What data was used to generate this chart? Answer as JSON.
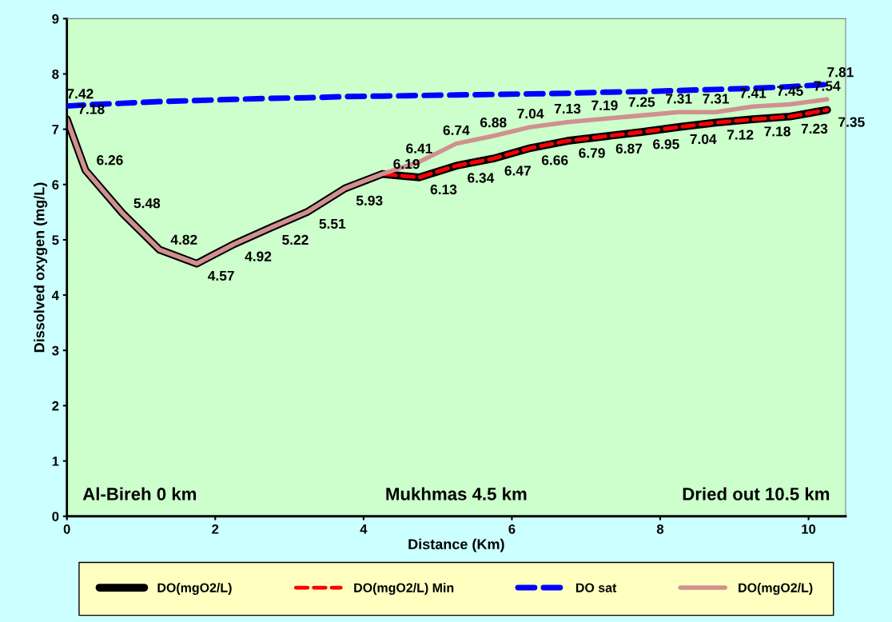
{
  "chart_data": {
    "type": "line",
    "xlabel": "Distance (Km)",
    "ylabel": "Dissolved oxygen (mg/L)",
    "x": [
      0,
      0.25,
      0.75,
      1.25,
      1.75,
      2.25,
      2.75,
      3.25,
      3.75,
      4.25,
      4.75,
      5.25,
      5.75,
      6.25,
      6.75,
      7.25,
      7.75,
      8.25,
      8.75,
      9.25,
      9.75,
      10.25
    ],
    "series": [
      {
        "name": "DO(mgO2/L)",
        "color": "#000000",
        "line_style": "solid",
        "values": [
          7.18,
          6.26,
          5.48,
          4.82,
          4.57,
          4.92,
          5.22,
          5.51,
          5.93,
          6.19,
          6.13,
          6.34,
          6.47,
          6.66,
          6.79,
          6.87,
          6.95,
          7.04,
          7.12,
          7.18,
          7.23,
          7.35
        ],
        "value_labels": [
          "7.18",
          "6.26",
          "5.48",
          "4.82",
          "4.57",
          "4.92",
          "5.22",
          "5.51",
          "5.93",
          "6.19",
          "6.13",
          "6.34",
          "6.47",
          "6.66",
          "6.79",
          "6.87",
          "6.95",
          "7.04",
          "7.12",
          "7.18",
          "7.23",
          "7.35"
        ]
      },
      {
        "name": "DO(mgO2/L) Min",
        "color": "#ff0000",
        "line_style": "dashed",
        "values": [
          7.18,
          6.26,
          5.48,
          4.82,
          4.57,
          4.92,
          5.22,
          5.51,
          5.93,
          6.19,
          6.13,
          6.34,
          6.47,
          6.66,
          6.79,
          6.87,
          6.95,
          7.04,
          7.12,
          7.18,
          7.23,
          7.35
        ]
      },
      {
        "name": "DO sat",
        "color": "#0000ff",
        "line_style": "dashed",
        "values": [
          7.42,
          7.44,
          7.47,
          7.5,
          7.52,
          7.54,
          7.56,
          7.57,
          7.59,
          7.6,
          7.61,
          7.62,
          7.63,
          7.64,
          7.65,
          7.67,
          7.68,
          7.7,
          7.72,
          7.74,
          7.77,
          7.81
        ],
        "value_labels": [
          "7.42",
          null,
          null,
          null,
          null,
          null,
          null,
          null,
          null,
          null,
          null,
          null,
          null,
          null,
          null,
          null,
          null,
          null,
          null,
          null,
          null,
          "7.81"
        ]
      },
      {
        "name": "DO(mgO2/L)",
        "color": "#d09090",
        "line_style": "solid",
        "values": [
          7.18,
          6.26,
          5.48,
          4.82,
          4.57,
          4.92,
          5.22,
          5.51,
          5.93,
          6.19,
          6.41,
          6.74,
          6.88,
          7.04,
          7.13,
          7.19,
          7.25,
          7.31,
          7.31,
          7.41,
          7.45,
          7.54
        ],
        "value_labels": [
          null,
          null,
          null,
          null,
          null,
          null,
          null,
          null,
          null,
          null,
          "6.41",
          "6.74",
          "6.88",
          "7.04",
          "7.13",
          "7.19",
          "7.25",
          "7.31",
          "7.31",
          "7.41",
          "7.45",
          "7.54"
        ]
      }
    ],
    "xlim": [
      0,
      10.5
    ],
    "xticks": [
      0,
      2,
      4,
      6,
      8,
      10
    ],
    "ylim": [
      0,
      9
    ],
    "yticks": [
      0,
      1,
      2,
      3,
      4,
      5,
      6,
      7,
      8,
      9
    ],
    "grid": false,
    "legend": "bottom",
    "marker": "none",
    "annotations": [
      "Al-Bireh 0 km",
      "Mukhmas 4.5 km",
      "Dried out 10.5 km"
    ]
  }
}
